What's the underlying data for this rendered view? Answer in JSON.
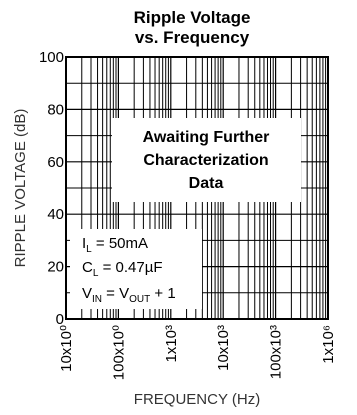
{
  "chart_data": {
    "type": "line",
    "title": [
      "Ripple Voltage",
      "vs. Frequency"
    ],
    "xlabel": "FREQUENCY (Hz)",
    "ylabel": "RIPPLE VOLTAGE (dB)",
    "x_scale": "log",
    "xlim": [
      10,
      1000000
    ],
    "ylim": [
      0,
      100
    ],
    "grid": true,
    "xticks": [
      10,
      100,
      1000,
      10000,
      100000,
      1000000
    ],
    "xtick_labels": [
      "10x10⁰",
      "100x10⁰",
      "1x10³",
      "10x10³",
      "100x10³",
      "1x10⁶"
    ],
    "yticks": [
      0,
      20,
      40,
      60,
      80,
      100
    ],
    "ytick_labels": [
      "0",
      "20",
      "40",
      "60",
      "80",
      "100"
    ],
    "series": [],
    "annotations": {
      "notice": [
        "Awaiting Further",
        "Characterization",
        "Data"
      ],
      "conditions": {
        "il": {
          "base": "I",
          "sub": "L",
          "rest": " = 50mA"
        },
        "cl": {
          "base": "C",
          "sub": "L",
          "rest": " = 0.47µF"
        },
        "vin": {
          "base": "V",
          "sub": "IN",
          "mid": " = V",
          "sub2": "OUT",
          "rest": " + 1"
        }
      }
    }
  }
}
